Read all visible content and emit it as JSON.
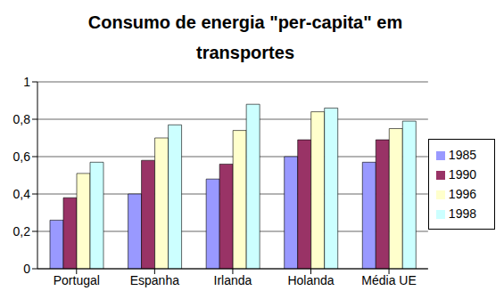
{
  "chart_data": {
    "type": "bar",
    "title": "Consumo de energia \"per-capita\" em transportes",
    "categories": [
      "Portugal",
      "Espanha",
      "Irlanda",
      "Holanda",
      "Média UE"
    ],
    "series": [
      {
        "name": "1985",
        "color": "#9999ff",
        "values": [
          0.26,
          0.4,
          0.48,
          0.6,
          0.57
        ]
      },
      {
        "name": "1990",
        "color": "#993366",
        "values": [
          0.38,
          0.58,
          0.56,
          0.69,
          0.69
        ]
      },
      {
        "name": "1996",
        "color": "#ffffcc",
        "values": [
          0.51,
          0.7,
          0.74,
          0.84,
          0.75
        ]
      },
      {
        "name": "1998",
        "color": "#ccffff",
        "values": [
          0.57,
          0.77,
          0.88,
          0.86,
          0.79
        ]
      }
    ],
    "ylim": [
      0,
      1
    ],
    "yticks": [
      0,
      {
        "value": 0.2,
        "label": "0,2"
      },
      {
        "value": 0.4,
        "label": "0,4"
      },
      {
        "value": 0.6,
        "label": "0,6"
      },
      {
        "value": 0.8,
        "label": "0,8"
      },
      1
    ],
    "grid": true,
    "legend": "right"
  }
}
